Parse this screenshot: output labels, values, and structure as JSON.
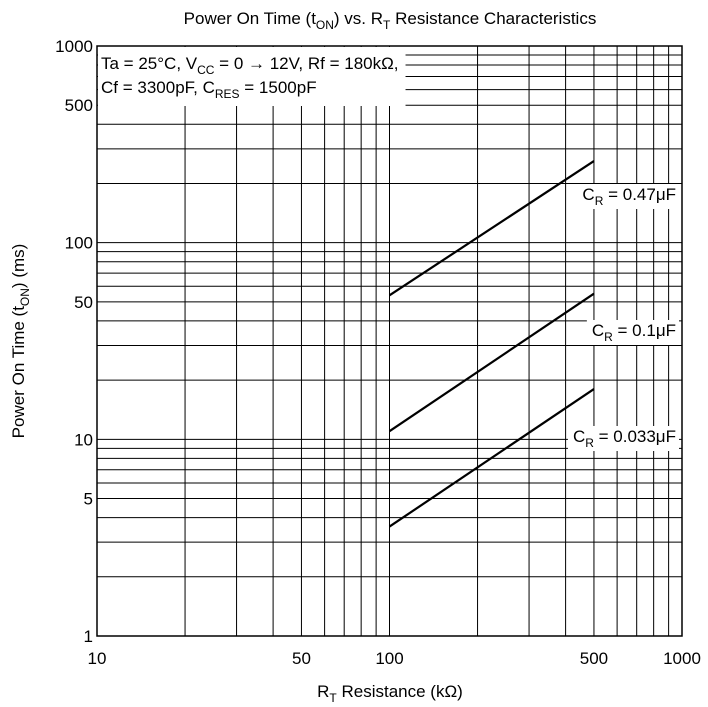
{
  "chart_data": {
    "type": "line",
    "title": {
      "pre": "Power On Time (t",
      "sub": "ON",
      "post": ") vs. R",
      "sub2": "T",
      "post2": " Resistance Characteristics"
    },
    "xlabel": {
      "pre": "R",
      "sub": "T",
      "post": " Resistance (kΩ)"
    },
    "ylabel": {
      "pre": "Power On Time (t",
      "sub": "ON",
      "post": ") (ms)"
    },
    "x_scale": "log",
    "y_scale": "log",
    "xlim": [
      10,
      1000
    ],
    "ylim": [
      1,
      1000
    ],
    "grid": true,
    "x_tick_labels": [
      {
        "value": 10,
        "label": "10"
      },
      {
        "value": 50,
        "label": "50"
      },
      {
        "value": 100,
        "label": "100"
      },
      {
        "value": 500,
        "label": "500"
      },
      {
        "value": 1000,
        "label": "1000"
      }
    ],
    "y_tick_labels": [
      {
        "value": 1,
        "label": "1"
      },
      {
        "value": 5,
        "label": "5"
      },
      {
        "value": 10,
        "label": "10"
      },
      {
        "value": 50,
        "label": "50"
      },
      {
        "value": 100,
        "label": "100"
      },
      {
        "value": 500,
        "label": "500"
      },
      {
        "value": 1000,
        "label": "1000"
      }
    ],
    "conditions": {
      "line1": {
        "a": "Ta = 25°C, V",
        "sub": "CC",
        "b": " = 0 → 12V, Rf = 180kΩ,"
      },
      "line2": {
        "a": "Cf = 3300pF, C",
        "sub": "RES",
        "b": " = 1500pF"
      }
    },
    "series": [
      {
        "name": "C_R = 0.47μF",
        "label": {
          "pre": "C",
          "sub": "R",
          "post": " = 0.47μF"
        },
        "x": [
          100,
          500
        ],
        "y": [
          54,
          260
        ]
      },
      {
        "name": "C_R = 0.1μF",
        "label": {
          "pre": "C",
          "sub": "R",
          "post": " = 0.1μF"
        },
        "x": [
          100,
          500
        ],
        "y": [
          11,
          55
        ]
      },
      {
        "name": "C_R = 0.033μF",
        "label": {
          "pre": "C",
          "sub": "R",
          "post": " = 0.033μF"
        },
        "x": [
          100,
          500
        ],
        "y": [
          3.6,
          18
        ]
      }
    ]
  }
}
